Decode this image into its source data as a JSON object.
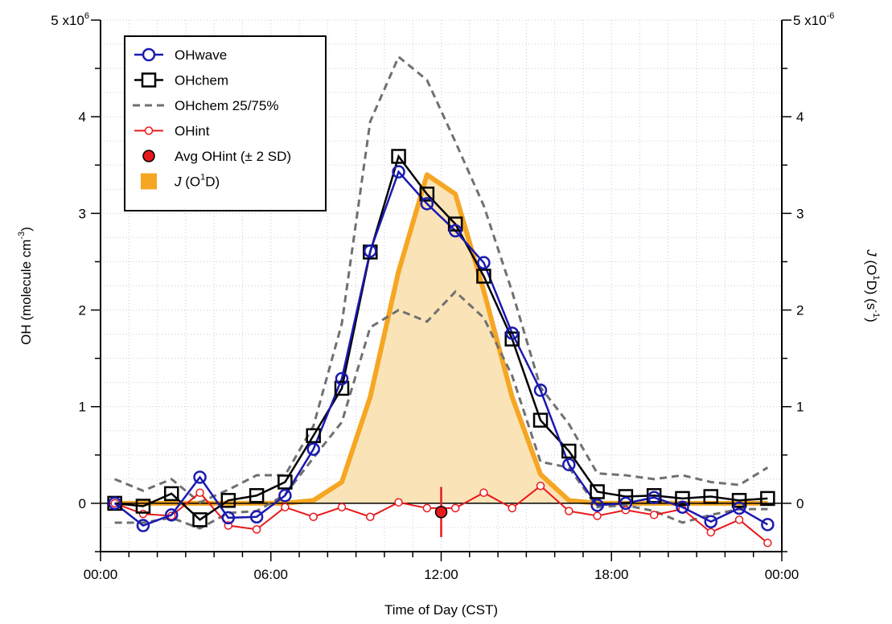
{
  "chart_data": {
    "type": "line",
    "xlabel": "Time of Day (CST)",
    "ylabel_left": {
      "base": "OH (molecule cm",
      "sup": "-3",
      "tail": ")"
    },
    "ylabel_right": {
      "pre": "J",
      "mid": " (O",
      "sup1": "1",
      "mid2": "D) (s",
      "sup2": "-1",
      "tail": ")"
    },
    "x_range_hours": [
      0,
      24
    ],
    "x_ticks": [
      {
        "value": 0,
        "label": "00:00"
      },
      {
        "value": 6,
        "label": "06:00"
      },
      {
        "value": 12,
        "label": "12:00"
      },
      {
        "value": 18,
        "label": "18:00"
      },
      {
        "value": 24,
        "label": "00:00"
      }
    ],
    "y_left_range": [
      -500000,
      5000000
    ],
    "y_left_ticks": [
      {
        "value": 0,
        "label": "0"
      },
      {
        "value": 1000000,
        "label": "1"
      },
      {
        "value": 2000000,
        "label": "2"
      },
      {
        "value": 3000000,
        "label": "3"
      },
      {
        "value": 4000000,
        "label": "4"
      }
    ],
    "y_left_top_label": {
      "base": "5 x10",
      "sup": "6"
    },
    "y_right_range": [
      -5e-07,
      5e-06
    ],
    "y_right_ticks": [
      {
        "value": 0,
        "label": "0"
      },
      {
        "value": 1e-06,
        "label": "1"
      },
      {
        "value": 2e-06,
        "label": "2"
      },
      {
        "value": 3e-06,
        "label": "3"
      },
      {
        "value": 4e-06,
        "label": "4"
      }
    ],
    "y_right_top_label": {
      "base": "5 x10",
      "sup": "-6"
    },
    "grid": true,
    "legend_position": "top-left",
    "x_hours": [
      0.5,
      1.5,
      2.5,
      3.5,
      4.5,
      5.5,
      6.5,
      7.5,
      8.5,
      9.5,
      10.5,
      11.5,
      12.5,
      13.5,
      14.5,
      15.5,
      16.5,
      17.5,
      18.5,
      19.5,
      20.5,
      21.5,
      22.5,
      23.5
    ],
    "series": [
      {
        "name": "OHwave",
        "axis": "left",
        "color": "#1a1ab0",
        "marker": "circle",
        "values": [
          0,
          -230000,
          -120000,
          270000,
          -150000,
          -140000,
          80000,
          560000,
          1290000,
          2610000,
          3430000,
          3100000,
          2820000,
          2490000,
          1760000,
          1170000,
          400000,
          -20000,
          0,
          60000,
          -40000,
          -190000,
          -50000,
          -220000
        ]
      },
      {
        "name": "OHchem",
        "axis": "left",
        "color": "#000000",
        "marker": "square",
        "values": [
          0,
          -30000,
          100000,
          -170000,
          30000,
          80000,
          220000,
          700000,
          1190000,
          2600000,
          3590000,
          3200000,
          2890000,
          2350000,
          1700000,
          860000,
          540000,
          120000,
          70000,
          80000,
          50000,
          70000,
          30000,
          50000
        ]
      },
      {
        "name": "OHchem 25/75%",
        "axis": "left",
        "color": "#707070",
        "marker": "none",
        "dashed": true,
        "upper": [
          250000,
          130000,
          250000,
          10000,
          140000,
          290000,
          290000,
          800000,
          1860000,
          3950000,
          4620000,
          4380000,
          3740000,
          3080000,
          2190000,
          1200000,
          820000,
          310000,
          290000,
          250000,
          290000,
          220000,
          190000,
          370000
        ],
        "lower": [
          -200000,
          -200000,
          -150000,
          -260000,
          -100000,
          -80000,
          90000,
          470000,
          840000,
          1820000,
          2000000,
          1880000,
          2190000,
          1920000,
          1320000,
          430000,
          370000,
          -40000,
          -20000,
          -80000,
          -200000,
          -120000,
          -60000,
          -60000
        ]
      },
      {
        "name": "OHint",
        "axis": "left",
        "color": "#e8191c",
        "marker": "circle-small",
        "values": [
          0,
          -110000,
          -130000,
          110000,
          -230000,
          -270000,
          -40000,
          -140000,
          -40000,
          -140000,
          10000,
          -50000,
          -50000,
          110000,
          -50000,
          180000,
          -80000,
          -130000,
          -70000,
          -120000,
          -60000,
          -300000,
          -170000,
          -410000
        ]
      },
      {
        "name": "Avg OHint (± 2 SD)",
        "axis": "left",
        "color": "#e8191c",
        "marker": "filled-circle",
        "x": 12.0,
        "value": -90000,
        "error": 260000
      },
      {
        "name": "J (O1D)",
        "legend_label": {
          "pre": "J",
          "mid": " (O",
          "sup": "1",
          "tail": "D)"
        },
        "axis": "right",
        "color": "#f5a623",
        "fill": "#fbe3b8",
        "marker": "none",
        "values": [
          0,
          0,
          0,
          0,
          0,
          0,
          0,
          3e-08,
          2.2e-07,
          1.1e-06,
          2.4e-06,
          3.4e-06,
          3.2e-06,
          2.2e-06,
          1.1e-06,
          3e-07,
          3e-08,
          0,
          0,
          0,
          0,
          0,
          0,
          0
        ]
      }
    ]
  }
}
